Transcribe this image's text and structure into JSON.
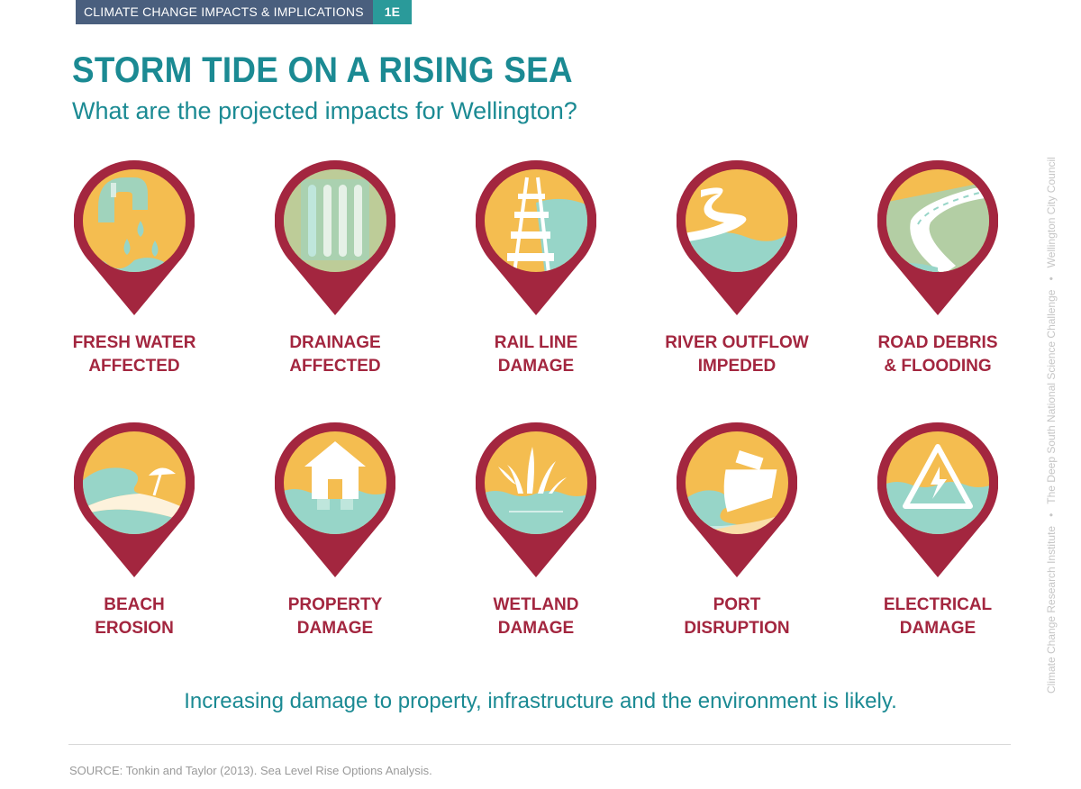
{
  "header": {
    "section_label": "CLIMATE CHANGE IMPACTS & IMPLICATIONS",
    "section_code": "1E"
  },
  "title": "STORM TIDE ON A RISING SEA",
  "subtitle": "What are the projected impacts for Wellington?",
  "side_credits": [
    "Climate Change Research Institute",
    "The Deep South National Science Challenge",
    "Wellington City Council"
  ],
  "impacts": [
    {
      "line1": "FRESH WATER",
      "line2": "AFFECTED",
      "icon": "water-tap-icon"
    },
    {
      "line1": "DRAINAGE",
      "line2": "AFFECTED",
      "icon": "drain-grate-icon"
    },
    {
      "line1": "RAIL LINE",
      "line2": "DAMAGE",
      "icon": "rail-track-icon"
    },
    {
      "line1": "RIVER OUTFLOW",
      "line2": "IMPEDED",
      "icon": "river-icon"
    },
    {
      "line1": "ROAD DEBRIS",
      "line2": "& FLOODING",
      "icon": "road-icon"
    },
    {
      "line1": "BEACH",
      "line2": "EROSION",
      "icon": "beach-wave-icon"
    },
    {
      "line1": "PROPERTY",
      "line2": "DAMAGE",
      "icon": "house-icon"
    },
    {
      "line1": "WETLAND",
      "line2": "DAMAGE",
      "icon": "reeds-icon"
    },
    {
      "line1": "PORT",
      "line2": "DISRUPTION",
      "icon": "ship-icon"
    },
    {
      "line1": "ELECTRICAL",
      "line2": "DAMAGE",
      "icon": "electrical-hazard-icon"
    }
  ],
  "summary": "Increasing damage to property, infrastructure and the environment is likely.",
  "source": "SOURCE: Tonkin and Taylor (2013). Sea Level Rise Options Analysis.",
  "colors": {
    "pin": "#a3263f",
    "sky": "#f4bd50",
    "sea": "#97d5c8",
    "teal_text": "#1b8a93",
    "header": "#4a5f7e",
    "code": "#2a9a9a"
  }
}
